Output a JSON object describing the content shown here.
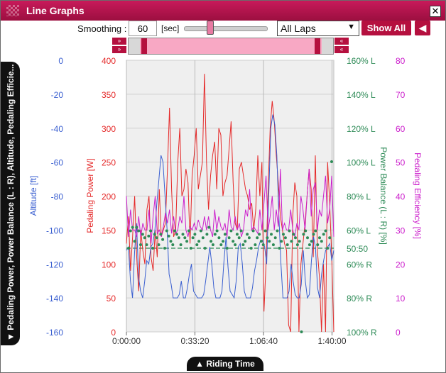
{
  "window": {
    "title": "Line Graphs"
  },
  "toolbar": {
    "smoothing_label": "Smoothing :",
    "smoothing_value": "60",
    "unit_label": "[sec]",
    "slider_value_sec": 60,
    "lap_select_value": "All Laps",
    "show_all_label": "Show All",
    "back_icon": "arrow-left-icon",
    "range_left_icon": "double-chevron-right-icon",
    "range_right_icon": "double-chevron-left-icon"
  },
  "tabs": {
    "series_tab_label": "▼ Pedaling Power, Power Balance (L : R), Altitude, Pedaling Efficie...",
    "riding_time_label": "▲ Riding Time"
  },
  "colors": {
    "accent": "#b5103f",
    "altitude": "#3a5fd0",
    "power": "#e52a2a",
    "balance": "#2e8b57",
    "efficiency": "#cc1fcc"
  },
  "chart_data": {
    "type": "line",
    "x_ticks": [
      "0:00:00",
      "0:33:20",
      "1:06:40",
      "1:40:00"
    ],
    "x_range_sec": [
      0,
      6000
    ],
    "axes": [
      {
        "name": "altitude",
        "label": "Altitude [ft]",
        "ticks": [
          "0",
          "-20",
          "-40",
          "-60",
          "-80",
          "-100",
          "-120",
          "-140",
          "-160"
        ],
        "range": [
          -160,
          0
        ]
      },
      {
        "name": "power",
        "label": "Pedaling Power [W]",
        "ticks": [
          "400",
          "350",
          "300",
          "250",
          "200",
          "150",
          "100",
          "50",
          "0"
        ],
        "range": [
          0,
          400
        ]
      },
      {
        "name": "balance",
        "label": "Power Balance (L : R) [%]",
        "ticks": [
          "160% L",
          "140% L",
          "120% L",
          "100% L",
          "80% L",
          "60% L",
          "50:50",
          "60% R",
          "80% R",
          "100% R"
        ]
      },
      {
        "name": "efficiency",
        "label": "Pedaling Efficiency [%]",
        "ticks": [
          "80",
          "70",
          "60",
          "50",
          "40",
          "30",
          "20",
          "10",
          "0"
        ],
        "range": [
          0,
          80
        ]
      }
    ],
    "grid": true,
    "series": [
      {
        "name": "Pedaling Power",
        "axis": "power",
        "values": [
          130,
          170,
          90,
          140,
          200,
          110,
          60,
          150,
          120,
          100,
          180,
          200,
          110,
          90,
          150,
          110,
          210,
          140,
          150,
          160,
          240,
          330,
          210,
          140,
          150,
          250,
          300,
          200,
          210,
          240,
          220,
          130,
          230,
          260,
          300,
          210,
          230,
          250,
          380,
          250,
          180,
          230,
          260,
          280,
          210,
          300,
          290,
          200,
          220,
          230,
          270,
          310,
          220,
          160,
          150,
          240,
          250,
          230,
          210,
          200,
          180,
          190,
          150,
          180,
          260,
          200,
          250,
          30,
          100,
          210,
          300,
          340,
          310,
          260,
          220,
          170,
          150,
          130,
          120,
          10,
          0,
          170,
          220,
          200,
          0,
          100,
          130,
          160,
          200,
          240,
          210,
          110,
          260,
          120,
          80,
          0,
          100,
          0,
          250,
          190,
          110,
          0
        ]
      },
      {
        "name": "Altitude",
        "axis": "altitude",
        "values": [
          -112,
          -110,
          -130,
          -140,
          -113,
          -96,
          -128,
          -136,
          -140,
          -130,
          -118,
          -120,
          -110,
          -108,
          -100,
          -84,
          -70,
          -56,
          -60,
          -80,
          -100,
          -126,
          -132,
          -140,
          -140,
          -140,
          -138,
          -130,
          -140,
          -140,
          -134,
          -126,
          -120,
          -136,
          -138,
          -140,
          -140,
          -140,
          -138,
          -130,
          -120,
          -110,
          -120,
          -134,
          -140,
          -140,
          -140,
          -136,
          -118,
          -104,
          -122,
          -136,
          -138,
          -140,
          -130,
          -110,
          -108,
          -120,
          -136,
          -140,
          -140,
          -140,
          -134,
          -124,
          -118,
          -110,
          -106,
          -106,
          -110,
          -120,
          -80,
          -40,
          -32,
          -38,
          -56,
          -92,
          -120,
          -140,
          -140,
          -140,
          -136,
          -120,
          -130,
          -138,
          -140,
          -140,
          -132,
          -112,
          -130,
          -140,
          -138,
          -118,
          -104,
          -110,
          -134,
          -140,
          -126,
          -118,
          -112,
          -110,
          -108,
          -118,
          -112
        ]
      },
      {
        "name": "Pedaling Efficiency",
        "axis": "efficiency",
        "values": [
          40,
          28,
          36,
          30,
          30,
          28,
          34,
          28,
          32,
          30,
          30,
          36,
          26,
          34,
          40,
          29,
          30,
          28,
          31,
          35,
          32,
          36,
          29,
          34,
          29,
          30,
          34,
          32,
          40,
          30,
          28,
          31,
          30,
          32,
          30,
          33,
          31,
          30,
          34,
          30,
          34,
          30,
          28,
          36,
          30,
          34,
          31,
          30,
          32,
          28,
          36,
          31,
          30,
          34,
          30,
          32,
          28,
          30,
          36,
          34,
          42,
          30,
          31,
          30,
          29,
          36,
          30,
          38,
          46,
          30,
          34,
          40,
          30,
          36,
          31,
          48,
          30,
          32,
          30,
          30,
          36,
          30,
          28,
          32,
          30,
          40,
          36,
          30,
          40,
          48,
          34,
          42,
          44,
          30,
          36,
          34,
          40,
          46,
          32,
          36,
          46,
          28
        ]
      }
    ],
    "balance_points_pct_L": [
      50,
      60,
      62,
      54,
      62,
      60,
      52,
      58,
      56,
      52,
      57,
      60,
      50,
      58,
      56,
      52,
      58,
      55,
      50,
      60,
      57,
      54,
      52,
      60,
      58,
      56,
      52,
      58,
      56,
      54,
      60,
      50,
      56,
      58,
      52,
      54,
      60,
      56,
      50,
      58,
      62,
      54,
      52,
      58,
      60,
      56,
      52,
      54,
      58,
      50,
      56,
      60,
      54,
      52,
      58,
      56,
      60,
      52,
      54,
      58,
      56,
      50,
      60,
      52,
      56,
      58,
      54,
      52,
      60,
      56,
      54,
      58,
      52,
      56,
      60,
      50,
      54,
      58,
      56,
      52,
      60,
      54,
      58,
      56,
      52,
      54,
      100,
      58,
      60,
      56,
      52,
      54,
      58,
      60,
      52,
      56,
      54,
      58,
      60,
      50,
      56,
      100
    ]
  }
}
